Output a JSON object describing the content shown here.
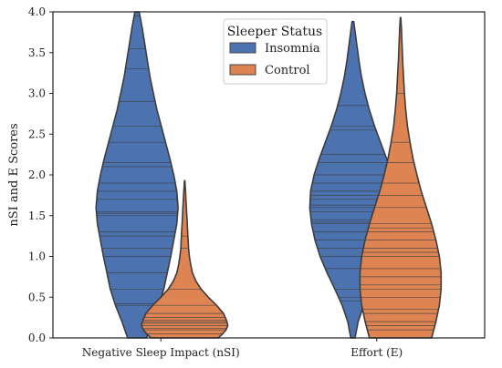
{
  "chart_data": {
    "type": "violin",
    "title": "",
    "xlabel": "",
    "ylabel": "nSI and E Scores",
    "ylim": [
      0,
      4.0
    ],
    "yticks": [
      "0.0",
      "0.5",
      "1.0",
      "1.5",
      "2.0",
      "2.5",
      "3.0",
      "3.5",
      "4.0"
    ],
    "categories": [
      "Negative Sleep Impact (nSI)",
      "Effort (E)"
    ],
    "grid": false,
    "inner": "stick",
    "legend": {
      "title": "Sleeper Status",
      "placement": "top-center",
      "entries": [
        "Insomnia",
        "Control"
      ]
    },
    "series": [
      {
        "name": "Insomnia",
        "color": "#4c72b0",
        "violins": [
          {
            "category": "Negative Sleep Impact (nSI)",
            "range": [
              0.0,
              4.0
            ],
            "density": [
              [
                0.0,
                0.22
              ],
              [
                0.2,
                0.35
              ],
              [
                0.4,
                0.5
              ],
              [
                0.6,
                0.62
              ],
              [
                0.8,
                0.7
              ],
              [
                1.0,
                0.78
              ],
              [
                1.2,
                0.85
              ],
              [
                1.4,
                0.92
              ],
              [
                1.6,
                0.95
              ],
              [
                1.8,
                0.92
              ],
              [
                2.0,
                0.85
              ],
              [
                2.2,
                0.76
              ],
              [
                2.4,
                0.66
              ],
              [
                2.6,
                0.56
              ],
              [
                2.8,
                0.46
              ],
              [
                3.0,
                0.38
              ],
              [
                3.2,
                0.3
              ],
              [
                3.4,
                0.24
              ],
              [
                3.6,
                0.18
              ],
              [
                3.8,
                0.12
              ],
              [
                4.0,
                0.05
              ]
            ],
            "points": [
              0.0,
              0.4,
              0.42,
              0.6,
              0.8,
              1.0,
              1.1,
              1.25,
              1.3,
              1.5,
              1.53,
              1.55,
              1.7,
              1.8,
              1.9,
              2.1,
              2.15,
              2.4,
              2.6,
              2.9,
              3.3,
              3.55,
              3.95
            ]
          },
          {
            "category": "Effort (E)",
            "range": [
              0.0,
              3.88
            ],
            "density": [
              [
                0.0,
                0.05
              ],
              [
                0.2,
                0.12
              ],
              [
                0.4,
                0.25
              ],
              [
                0.6,
                0.42
              ],
              [
                0.8,
                0.6
              ],
              [
                1.0,
                0.76
              ],
              [
                1.2,
                0.88
              ],
              [
                1.4,
                0.96
              ],
              [
                1.6,
                1.0
              ],
              [
                1.8,
                0.98
              ],
              [
                2.0,
                0.9
              ],
              [
                2.2,
                0.78
              ],
              [
                2.4,
                0.64
              ],
              [
                2.6,
                0.5
              ],
              [
                2.8,
                0.38
              ],
              [
                3.0,
                0.28
              ],
              [
                3.2,
                0.2
              ],
              [
                3.4,
                0.14
              ],
              [
                3.6,
                0.09
              ],
              [
                3.88,
                0.02
              ]
            ],
            "points": [
              0.45,
              0.5,
              0.6,
              0.85,
              1.0,
              1.1,
              1.2,
              1.3,
              1.4,
              1.42,
              1.45,
              1.55,
              1.6,
              1.63,
              1.7,
              1.75,
              1.8,
              1.9,
              2.0,
              2.15,
              2.25,
              2.55,
              2.6,
              2.85
            ]
          }
        ]
      },
      {
        "name": "Control",
        "color": "#dd8452",
        "violins": [
          {
            "category": "Negative Sleep Impact (nSI)",
            "range": [
              0.0,
              1.93
            ],
            "density": [
              [
                0.0,
                0.78
              ],
              [
                0.05,
                0.88
              ],
              [
                0.1,
                0.96
              ],
              [
                0.15,
                1.0
              ],
              [
                0.2,
                0.98
              ],
              [
                0.3,
                0.9
              ],
              [
                0.4,
                0.74
              ],
              [
                0.5,
                0.55
              ],
              [
                0.6,
                0.38
              ],
              [
                0.7,
                0.26
              ],
              [
                0.8,
                0.18
              ],
              [
                0.9,
                0.14
              ],
              [
                1.0,
                0.11
              ],
              [
                1.1,
                0.09
              ],
              [
                1.2,
                0.08
              ],
              [
                1.3,
                0.07
              ],
              [
                1.4,
                0.06
              ],
              [
                1.5,
                0.05
              ],
              [
                1.6,
                0.04
              ],
              [
                1.7,
                0.03
              ],
              [
                1.8,
                0.02
              ],
              [
                1.93,
                0.005
              ]
            ],
            "points": [
              0.0,
              0.05,
              0.1,
              0.12,
              0.15,
              0.18,
              0.2,
              0.22,
              0.25,
              0.3,
              0.4,
              0.6,
              1.1,
              1.25
            ]
          },
          {
            "category": "Effort (E)",
            "range": [
              0.0,
              3.93
            ],
            "density": [
              [
                0.0,
                0.72
              ],
              [
                0.2,
                0.82
              ],
              [
                0.4,
                0.9
              ],
              [
                0.6,
                0.94
              ],
              [
                0.8,
                0.94
              ],
              [
                1.0,
                0.9
              ],
              [
                1.2,
                0.82
              ],
              [
                1.4,
                0.72
              ],
              [
                1.6,
                0.6
              ],
              [
                1.8,
                0.48
              ],
              [
                2.0,
                0.38
              ],
              [
                2.2,
                0.29
              ],
              [
                2.4,
                0.22
              ],
              [
                2.6,
                0.16
              ],
              [
                2.8,
                0.12
              ],
              [
                3.0,
                0.09
              ],
              [
                3.2,
                0.07
              ],
              [
                3.4,
                0.05
              ],
              [
                3.6,
                0.035
              ],
              [
                3.8,
                0.02
              ],
              [
                3.93,
                0.005
              ]
            ],
            "points": [
              0.0,
              0.1,
              0.15,
              0.2,
              0.3,
              0.35,
              0.5,
              0.6,
              0.65,
              0.75,
              0.85,
              1.0,
              1.05,
              1.1,
              1.2,
              1.3,
              1.35,
              1.4,
              1.6,
              1.75,
              1.9,
              2.15,
              2.4,
              3.0
            ]
          }
        ]
      }
    ]
  }
}
